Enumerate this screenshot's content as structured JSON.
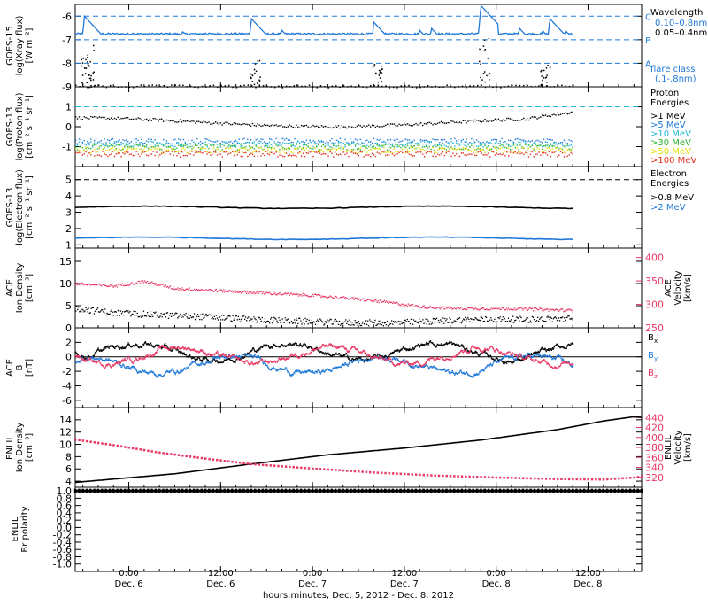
{
  "colors": {
    "black": "#000000",
    "blue": "#1f78d8",
    "pink": "#e83866",
    "cyan": "#22b8d8",
    "green": "#2fb52f",
    "yellow": "#e4e000",
    "orange": "#f0a020",
    "red": "#e03020"
  },
  "x_axis": {
    "ticks": [
      {
        "time": "0:00",
        "date": "Dec. 6",
        "hour": 24
      },
      {
        "time": "12:00",
        "date": "Dec. 6",
        "hour": 36
      },
      {
        "time": "0:00",
        "date": "Dec. 7",
        "hour": 48
      },
      {
        "time": "12:00",
        "date": "Dec. 7",
        "hour": 60
      },
      {
        "time": "0:00",
        "date": "Dec. 8",
        "hour": 72
      },
      {
        "time": "12:00",
        "date": "Dec. 8",
        "hour": 84
      }
    ],
    "label": "hours:minutes, Dec.  5, 2012 - Dec.  8, 2012",
    "start_hour": 17,
    "end_hour": 91,
    "data_end_hour": 82
  },
  "chart_data": [
    {
      "id": "xray",
      "type": "line",
      "ylabel": "GOES-15",
      "ylabel2": "log(Xray flux)",
      "ylabel3": "[W m⁻²]",
      "ylim": [
        -9,
        -5.5
      ],
      "yticks": [
        -9,
        -8,
        -7,
        -6
      ],
      "flare_levels": [
        {
          "class": "C",
          "y": -6
        },
        {
          "class": "B",
          "y": -7
        },
        {
          "class": "A",
          "y": -8
        }
      ],
      "legend_title": "Wavelength",
      "series": [
        {
          "name": "0.10–0.8nm",
          "color": "blue",
          "baseline": -6.75,
          "spikes": [
            [
              18.2,
              -6.0
            ],
            [
              24.5,
              -6.7
            ],
            [
              26,
              -6.8
            ],
            [
              31,
              -6.65
            ],
            [
              34,
              -6.7
            ],
            [
              40,
              -6.1
            ],
            [
              44,
              -6.6
            ],
            [
              56,
              -6.25
            ],
            [
              62,
              -6.6
            ],
            [
              63.5,
              -6.5
            ],
            [
              70,
              -5.55
            ],
            [
              75,
              -6.5
            ],
            [
              78,
              -6.6
            ],
            [
              79,
              -6.1
            ],
            [
              81,
              -6.6
            ]
          ]
        },
        {
          "name": "0.05–0.4nm",
          "color": "black",
          "baseline": -9.0,
          "spikes": [
            [
              17.8,
              -7.6
            ],
            [
              18.3,
              -7.2
            ],
            [
              40,
              -7.8
            ],
            [
              56,
              -8.0
            ],
            [
              70,
              -6.9
            ],
            [
              78,
              -8.0
            ]
          ]
        }
      ],
      "legend_note": [
        "flare class",
        "(.1-.8nm)"
      ]
    },
    {
      "id": "proton",
      "type": "scatter",
      "ylabel": "GOES-13",
      "ylabel2": "log(Proton flux)",
      "ylabel3": "[cm⁻² s⁻¹ sr⁻¹]",
      "ylim": [
        -2,
        2
      ],
      "yticks": [
        -1,
        0,
        1
      ],
      "threshold": 1,
      "legend_title": [
        "Proton",
        "Energies"
      ],
      "series": [
        {
          "name": ">1 MeV",
          "color": "black",
          "level": 0.25
        },
        {
          "name": ">5 MeV",
          "color": "blue",
          "level": -0.7
        },
        {
          "name": ">10 MeV",
          "color": "cyan",
          "level": -0.85
        },
        {
          "name": ">30 MeV",
          "color": "green",
          "level": -1.0
        },
        {
          "name": ">50 MeV",
          "color": "yellow",
          "level": -1.15
        },
        {
          "name": ">100 MeV",
          "color": "red",
          "level": -1.35
        }
      ]
    },
    {
      "id": "electron",
      "type": "line",
      "ylabel": "GOES-13",
      "ylabel2": "log(Electron flux)",
      "ylabel3": "[cm⁻² s⁻¹ sr⁻¹]",
      "ylim": [
        0.8,
        5.8
      ],
      "yticks": [
        1,
        2,
        3,
        4,
        5
      ],
      "threshold": 5,
      "legend_title": [
        "Electron",
        "Energies"
      ],
      "series": [
        {
          "name": ">0.8 MeV",
          "color": "black",
          "level": 3.3
        },
        {
          "name": ">2 MeV",
          "color": "blue",
          "level": 1.4
        }
      ]
    },
    {
      "id": "ace-density",
      "type": "scatter",
      "ylabel": "ACE",
      "ylabel2": "Ion Density",
      "ylabel3": "[cm⁻³]",
      "ylim": [
        0,
        18
      ],
      "yticks": [
        0,
        5,
        10,
        15
      ],
      "ylabel_right": "ACE",
      "ylabel_right2": "Velocity",
      "ylabel_right3": "[km/s]",
      "ylim_right": [
        250,
        420
      ],
      "yticks_right": [
        250,
        300,
        350,
        400
      ],
      "series": [
        {
          "name": "density",
          "color": "black",
          "points": [
            [
              17,
              4.5
            ],
            [
              22,
              3.5
            ],
            [
              28,
              3.0
            ],
            [
              34,
              2.6
            ],
            [
              40,
              2.0
            ],
            [
              46,
              1.6
            ],
            [
              52,
              1.3
            ],
            [
              58,
              1.2
            ],
            [
              64,
              1.6
            ],
            [
              67,
              1.9
            ],
            [
              70,
              2.0
            ],
            [
              76,
              2.0
            ],
            [
              82,
              2.2
            ]
          ]
        },
        {
          "name": "velocity",
          "color": "pink",
          "points": [
            [
              17,
              345
            ],
            [
              22,
              340
            ],
            [
              26,
              350
            ],
            [
              30,
              335
            ],
            [
              36,
              330
            ],
            [
              42,
              325
            ],
            [
              48,
              320
            ],
            [
              54,
              312
            ],
            [
              58,
              305
            ],
            [
              62,
              296
            ],
            [
              66,
              293
            ],
            [
              70,
              292
            ],
            [
              74,
              292
            ],
            [
              78,
              290
            ],
            [
              82,
              288
            ]
          ]
        }
      ]
    },
    {
      "id": "ace-b",
      "type": "line",
      "ylabel": "ACE",
      "ylabel2": "B",
      "ylabel3": "[nT]",
      "ylim": [
        -7,
        4
      ],
      "yticks": [
        -6,
        -4,
        -2,
        0,
        2
      ],
      "series": [
        {
          "name": "Bx",
          "label": "B",
          "sub": "x",
          "color": "black",
          "center": 0.8
        },
        {
          "name": "By",
          "label": "B",
          "sub": "y",
          "color": "blue",
          "center": -1.0
        },
        {
          "name": "Bz",
          "label": "B",
          "sub": "z",
          "color": "pink",
          "center": 0.3
        }
      ]
    },
    {
      "id": "enlil-density",
      "type": "line",
      "ylabel": "ENLIL",
      "ylabel2": "Ion Density",
      "ylabel3": "[cm⁻³]",
      "ylim": [
        3,
        16
      ],
      "yticks": [
        4,
        6,
        8,
        10,
        12,
        14
      ],
      "ylabel_right": "ENLIL",
      "ylabel_right2": "Velocity",
      "ylabel_right3": "[km/s]",
      "ylim_right": [
        300,
        460
      ],
      "yticks_right": [
        320,
        340,
        360,
        380,
        400,
        420,
        440
      ],
      "series": [
        {
          "name": "density",
          "color": "black",
          "points": [
            [
              17,
              3.8
            ],
            [
              30,
              5.2
            ],
            [
              40,
              6.8
            ],
            [
              50,
              8.3
            ],
            [
              60,
              9.4
            ],
            [
              70,
              10.7
            ],
            [
              80,
              12.4
            ],
            [
              86,
              13.8
            ],
            [
              90,
              14.5
            ],
            [
              91,
              14.4
            ]
          ]
        },
        {
          "name": "velocity",
          "color": "pink",
          "points": [
            [
              17,
              396
            ],
            [
              22,
              385
            ],
            [
              28,
              370
            ],
            [
              34,
              358
            ],
            [
              40,
              347
            ],
            [
              48,
              338
            ],
            [
              56,
              330
            ],
            [
              64,
              324
            ],
            [
              72,
              320
            ],
            [
              80,
              317
            ],
            [
              86,
              316
            ],
            [
              90,
              320
            ],
            [
              91,
              322
            ]
          ]
        }
      ]
    },
    {
      "id": "enlil-polarity",
      "type": "line",
      "ylabel": "ENLIL",
      "ylabel2": "Br polarity",
      "ylim": [
        -1.2,
        1.1
      ],
      "yticks": [
        -1.0,
        -0.8,
        -0.6,
        -0.4,
        -0.2,
        0.0,
        0.2,
        0.4,
        0.6,
        0.8,
        1.0
      ],
      "ytick_labels": [
        "-1.0",
        "-0.8",
        "-0.6",
        "-0.4",
        "-0.2",
        "0.0",
        "0.2",
        "0.4",
        "0.6",
        "0.8",
        "1.0"
      ],
      "series": [
        {
          "name": "polarity",
          "color": "black",
          "level": 1.0
        }
      ]
    }
  ]
}
